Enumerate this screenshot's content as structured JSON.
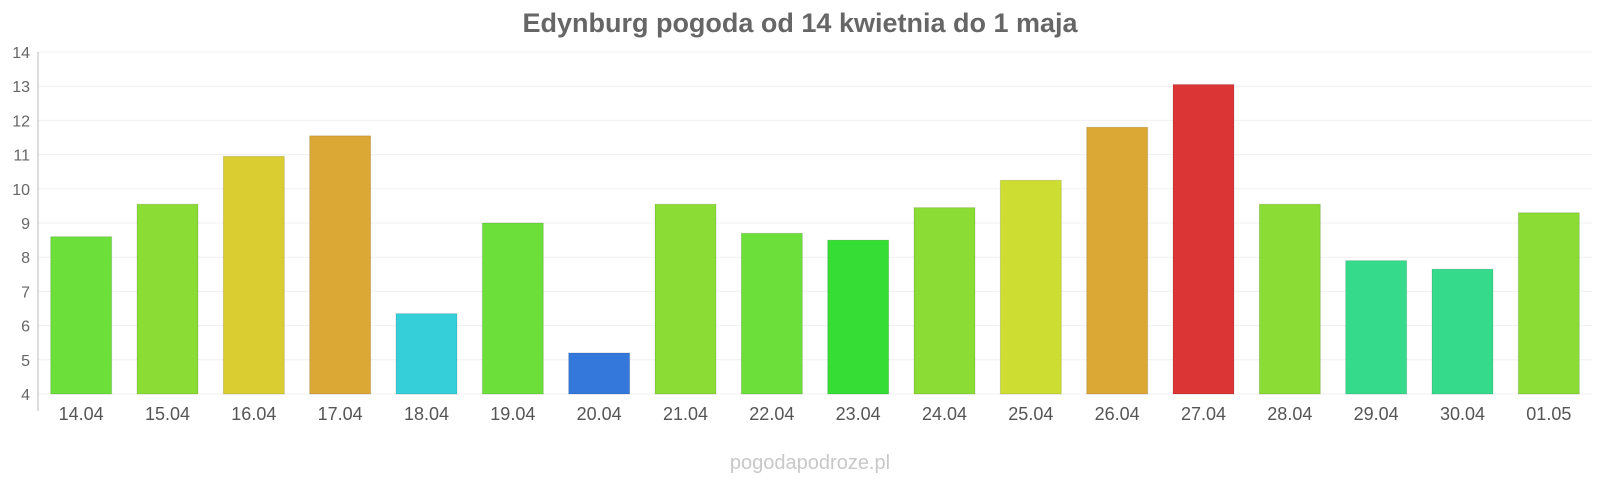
{
  "chart_data": {
    "type": "bar",
    "title": "Edynburg pogoda od 14 kwietnia do 1 maja",
    "xlabel": "",
    "ylabel": "",
    "ylim": [
      4,
      14
    ],
    "yticks": [
      "4",
      "5",
      "6",
      "7",
      "8",
      "9",
      "10",
      "11",
      "12",
      "13",
      "14"
    ],
    "grid": true,
    "categories": [
      "14.04",
      "15.04",
      "16.04",
      "17.04",
      "18.04",
      "19.04",
      "20.04",
      "21.04",
      "22.04",
      "23.04",
      "24.04",
      "25.04",
      "26.04",
      "27.04",
      "28.04",
      "29.04",
      "30.04",
      "01.05"
    ],
    "values": [
      8.6,
      9.55,
      10.95,
      11.55,
      6.35,
      9.0,
      5.2,
      9.55,
      8.7,
      8.5,
      9.45,
      10.25,
      11.8,
      13.05,
      9.55,
      7.9,
      7.65,
      9.3
    ],
    "colors": [
      "#6ddf3a",
      "#8bdc35",
      "#dacd32",
      "#dba735",
      "#35cfd9",
      "#6ddf3a",
      "#3478db",
      "#8bdc35",
      "#6ddf3a",
      "#35dd35",
      "#8bdc35",
      "#cddd32",
      "#dba735",
      "#dc3535",
      "#8bdc35",
      "#35db8b",
      "#35db8b",
      "#8bdc35"
    ]
  },
  "source_label": "pogodapodroze.pl"
}
